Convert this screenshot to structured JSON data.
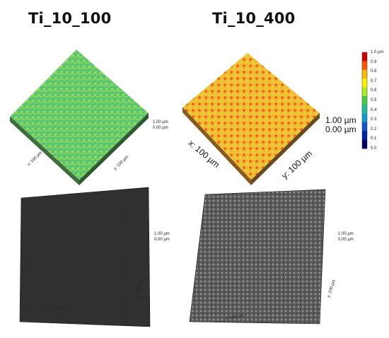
{
  "titles": {
    "left": "Ti_10_100",
    "right": "Ti_10_400"
  },
  "top_left": {
    "z_top": "1.00 µm",
    "z_bottom": "0.00 µm",
    "x_label": "x: 100 µm",
    "y_label": "y: 100 µm"
  },
  "top_right": {
    "z_top": "1.00 µm",
    "z_bottom": "0.00 µm",
    "x_label": "x: 100 µm",
    "y_label": "y: 100 µm"
  },
  "bottom_left": {
    "z_top": "1.00 µm",
    "z_bottom": "0.00 µm",
    "x_label": "x: 100 µm",
    "y_label": "y: 100 µm"
  },
  "bottom_right": {
    "z_top": "1.00 µm",
    "z_bottom": "0.00 µm",
    "x_label": "x: 100 µm",
    "y_label": "y: 100 µm"
  },
  "colorbar": {
    "ticks": [
      "1.0 µm",
      "0.9",
      "0.8",
      "0.7",
      "0.6",
      "0.5",
      "0.4",
      "0.3",
      "0.2",
      "0.1",
      "0.0"
    ],
    "colors": [
      "#cc0000",
      "#ff5500",
      "#ffbb00",
      "#ffee00",
      "#aaee22",
      "#44cc44",
      "#22bb99",
      "#1199cc",
      "#1155cc",
      "#0022aa",
      "#000066"
    ]
  },
  "surface_colors": {
    "left_base": "#7ed957",
    "left_accents": [
      "#3fae5a",
      "#2a8fd0",
      "#d7e84a"
    ],
    "right_base": "#f2c330",
    "right_accents": [
      "#e84a1a",
      "#f06a1a",
      "#c9e040"
    ],
    "sem_left": "#2f2f2f",
    "sem_right": "#5a5a5a"
  }
}
